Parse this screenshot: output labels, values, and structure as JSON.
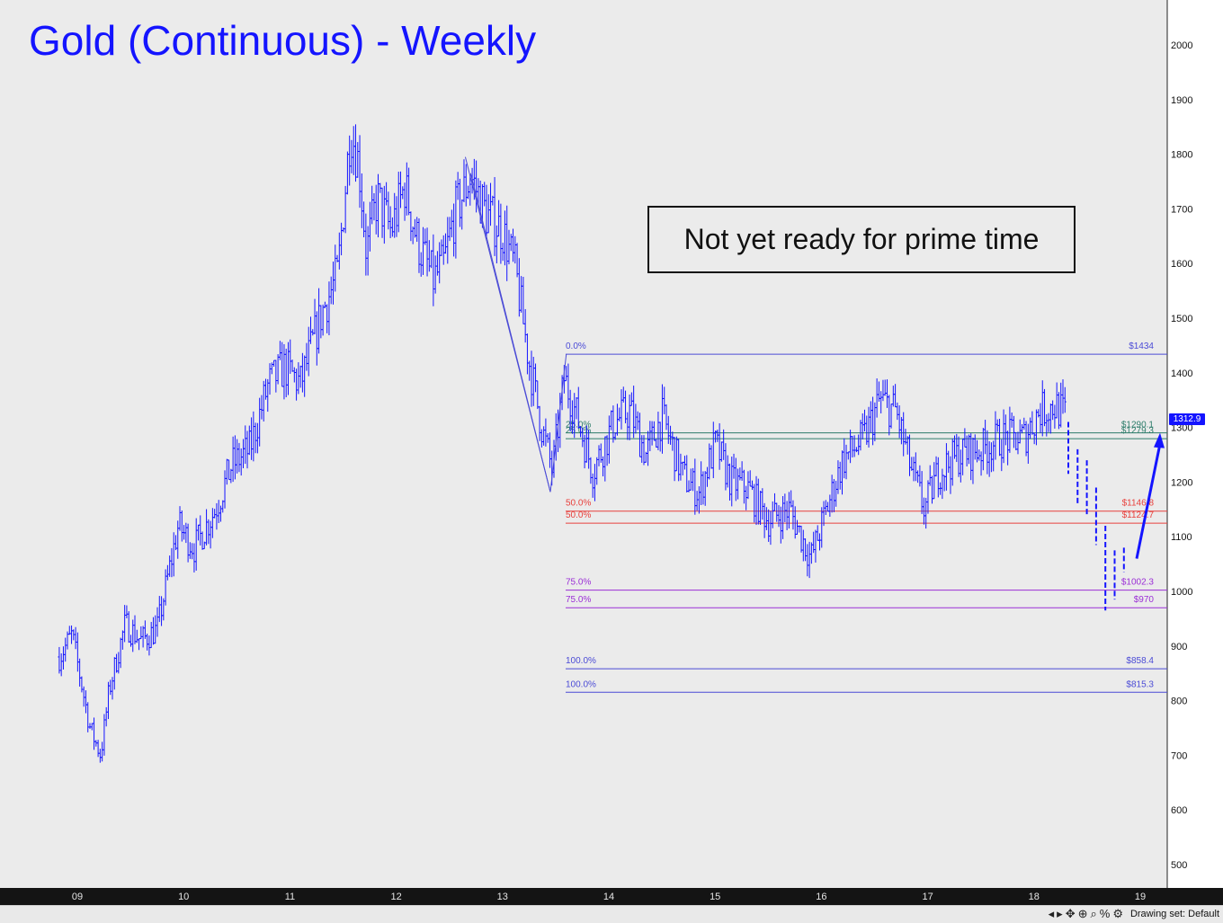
{
  "chart_data": {
    "type": "bar",
    "title": "Gold (Continuous) - Weekly",
    "annotation": "Not yet ready for prime time",
    "x_ticks": [
      "09",
      "10",
      "11",
      "12",
      "13",
      "14",
      "15",
      "16",
      "17",
      "18",
      "19"
    ],
    "y_ticks": [
      500,
      600,
      700,
      800,
      900,
      1000,
      1100,
      1200,
      1300,
      1400,
      1500,
      1600,
      1700,
      1800,
      1900,
      2000
    ],
    "ylim": [
      470,
      2080
    ],
    "last_price": "1312.9",
    "price_path": [
      [
        2008.83,
        880
      ],
      [
        2008.95,
        920
      ],
      [
        2009.12,
        750
      ],
      [
        2009.22,
        700
      ],
      [
        2009.3,
        820
      ],
      [
        2009.45,
        940
      ],
      [
        2009.6,
        910
      ],
      [
        2009.75,
        930
      ],
      [
        2009.95,
        1120
      ],
      [
        2010.1,
        1080
      ],
      [
        2010.3,
        1150
      ],
      [
        2010.45,
        1230
      ],
      [
        2010.62,
        1260
      ],
      [
        2010.8,
        1380
      ],
      [
        2010.95,
        1410
      ],
      [
        2011.1,
        1380
      ],
      [
        2011.3,
        1510
      ],
      [
        2011.45,
        1580
      ],
      [
        2011.57,
        1850
      ],
      [
        2011.65,
        1780
      ],
      [
        2011.72,
        1620
      ],
      [
        2011.82,
        1720
      ],
      [
        2011.95,
        1660
      ],
      [
        2012.08,
        1740
      ],
      [
        2012.2,
        1640
      ],
      [
        2012.35,
        1570
      ],
      [
        2012.45,
        1600
      ],
      [
        2012.55,
        1690
      ],
      [
        2012.7,
        1760
      ],
      [
        2012.85,
        1690
      ],
      [
        2013.0,
        1660
      ],
      [
        2013.12,
        1590
      ],
      [
        2013.25,
        1420
      ],
      [
        2013.38,
        1290
      ],
      [
        2013.47,
        1220
      ],
      [
        2013.58,
        1390
      ],
      [
        2013.7,
        1320
      ],
      [
        2013.85,
        1220
      ],
      [
        2014.05,
        1310
      ],
      [
        2014.2,
        1330
      ],
      [
        2014.35,
        1250
      ],
      [
        2014.5,
        1320
      ],
      [
        2014.7,
        1210
      ],
      [
        2014.85,
        1180
      ],
      [
        2015.0,
        1270
      ],
      [
        2015.15,
        1200
      ],
      [
        2015.3,
        1190
      ],
      [
        2015.5,
        1130
      ],
      [
        2015.7,
        1150
      ],
      [
        2015.9,
        1060
      ],
      [
        2016.05,
        1150
      ],
      [
        2016.2,
        1240
      ],
      [
        2016.4,
        1280
      ],
      [
        2016.55,
        1350
      ],
      [
        2016.7,
        1330
      ],
      [
        2016.85,
        1220
      ],
      [
        2016.97,
        1150
      ],
      [
        2017.1,
        1220
      ],
      [
        2017.3,
        1250
      ],
      [
        2017.5,
        1260
      ],
      [
        2017.7,
        1280
      ],
      [
        2017.9,
        1280
      ],
      [
        2018.05,
        1330
      ],
      [
        2018.2,
        1340
      ],
      [
        2018.3,
        1320
      ]
    ],
    "fib_levels": [
      {
        "pct": "0.0%",
        "label": "$1434",
        "value": 1434,
        "color": "#4b4bd6"
      },
      {
        "pct": "25.0%",
        "label": "$1290.1",
        "value": 1290.1,
        "color": "#2e7d6b"
      },
      {
        "pct": "25.0%",
        "label": "$1279.3",
        "value": 1279.3,
        "color": "#2e7d6b"
      },
      {
        "pct": "50.0%",
        "label": "$1146.8",
        "value": 1146.8,
        "color": "#e8403c"
      },
      {
        "pct": "50.0%",
        "label": "$1124.7",
        "value": 1124.7,
        "color": "#e8403c"
      },
      {
        "pct": "75.0%",
        "label": "$1002.3",
        "value": 1002.3,
        "color": "#9b2fd6"
      },
      {
        "pct": "75.0%",
        "label": "$970",
        "value": 970,
        "color": "#9b2fd6"
      },
      {
        "pct": "100.0%",
        "label": "$858.4",
        "value": 858.4,
        "color": "#4b4bd6"
      },
      {
        "pct": "100.0%",
        "label": "$815.3",
        "value": 815.3,
        "color": "#4b4bd6"
      }
    ],
    "projection_bars": [
      [
        1215,
        1310
      ],
      [
        1160,
        1260
      ],
      [
        1140,
        1240
      ],
      [
        1085,
        1190
      ],
      [
        965,
        1120
      ],
      [
        985,
        1075
      ],
      [
        1035,
        1080
      ]
    ],
    "projection_arrow": {
      "from": 1060,
      "to": 1290
    },
    "colors": {
      "bars": "#1414ff",
      "title": "#1414ff",
      "background": "#ebebeb",
      "axis_panel": "#ffffff"
    }
  },
  "status_bar": {
    "label": "Drawing set: Default",
    "icons": [
      "nav-left-icon",
      "nav-right-icon",
      "cursor-icon",
      "crosshair-icon",
      "zoom-icon",
      "percent-icon",
      "settings-icon"
    ]
  }
}
